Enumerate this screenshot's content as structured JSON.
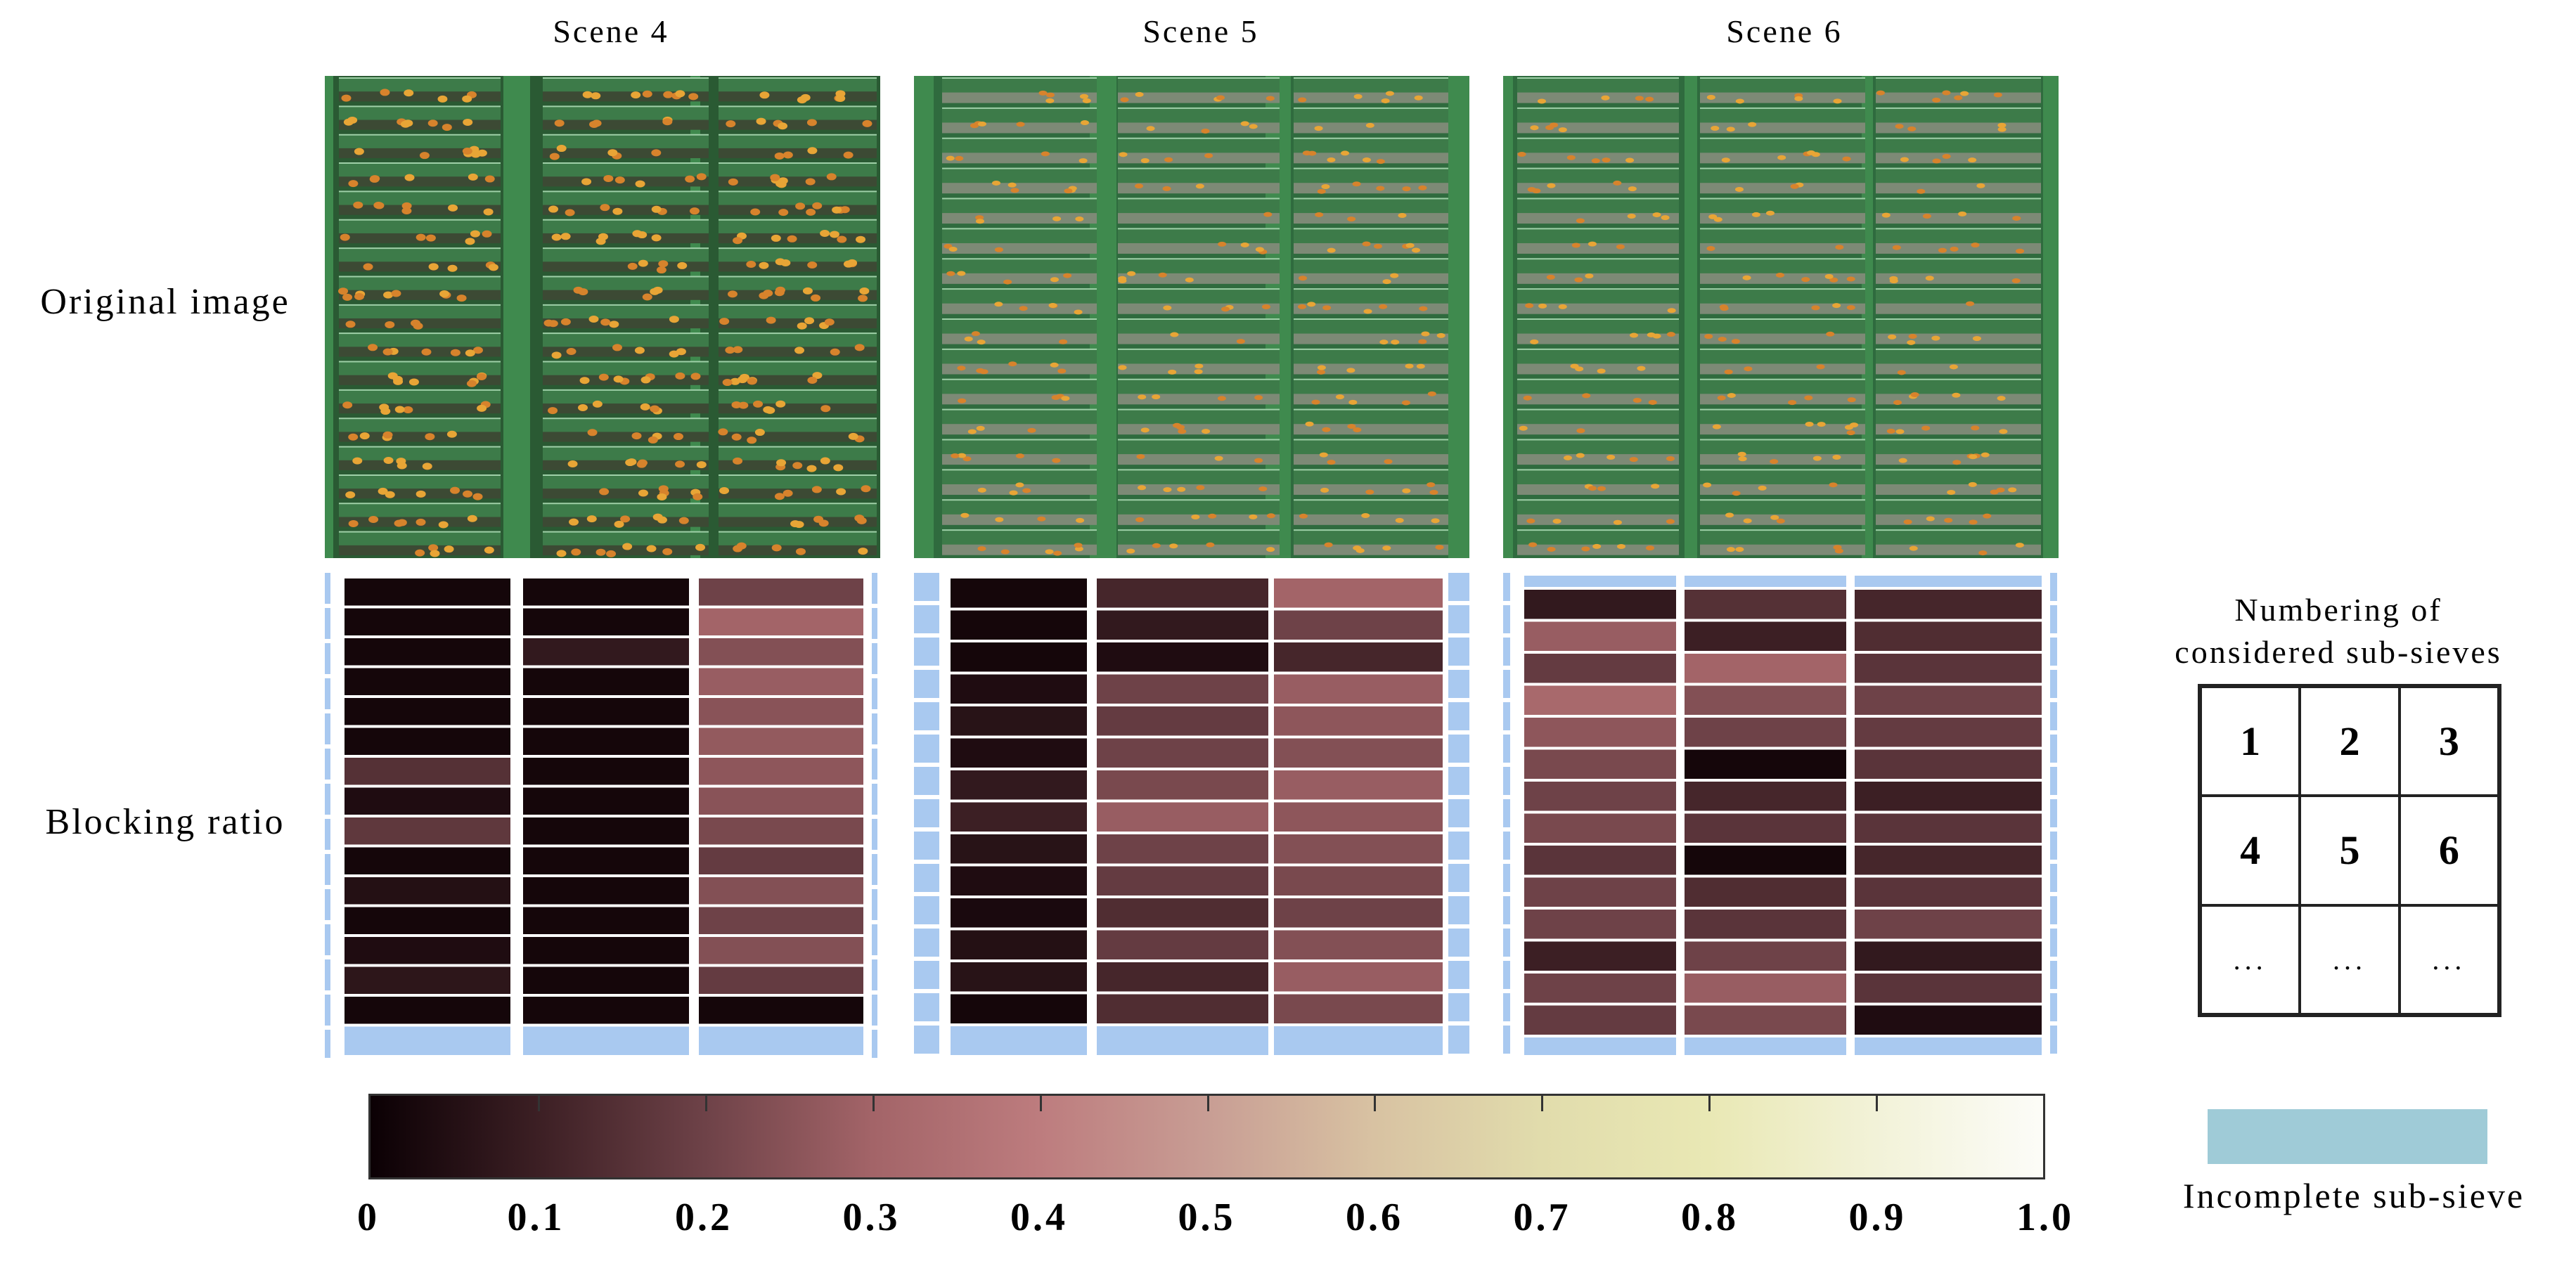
{
  "scenes": {
    "s4": "Scene 4",
    "s5": "Scene 5",
    "s6": "Scene 6"
  },
  "rows": {
    "original": "Original image",
    "blocking": "Blocking ratio"
  },
  "legend": {
    "numbering_title_line1": "Numbering of",
    "numbering_title_line2": "considered sub-sieves",
    "cells": [
      "1",
      "2",
      "3",
      "4",
      "5",
      "6",
      "...",
      "...",
      "..."
    ],
    "incomplete_label": "Incomplete sub-sieve",
    "incomplete_color": "#9fcbd7"
  },
  "colorbar": {
    "ticks": [
      "0",
      "0.1",
      "0.2",
      "0.3",
      "0.4",
      "0.5",
      "0.6",
      "0.7",
      "0.8",
      "0.9",
      "1.0"
    ],
    "colormap": [
      "#0b0004",
      "#3c1f24",
      "#6e4248",
      "#a36468",
      "#bd7c7e",
      "#c89d94",
      "#d8c2a2",
      "#e1dcac",
      "#e9e8b4",
      "#f2f2d8",
      "#fcfcf8"
    ]
  },
  "heatmaps": {
    "scene4": [
      [
        0.02,
        0.02,
        0.2
      ],
      [
        0.02,
        0.02,
        0.3
      ],
      [
        0.02,
        0.08,
        0.24
      ],
      [
        0.02,
        0.02,
        0.28
      ],
      [
        0.02,
        0.02,
        0.25
      ],
      [
        0.02,
        0.02,
        0.27
      ],
      [
        0.15,
        0.02,
        0.26
      ],
      [
        0.04,
        0.02,
        0.25
      ],
      [
        0.17,
        0.02,
        0.22
      ],
      [
        0.02,
        0.02,
        0.18
      ],
      [
        0.05,
        0.02,
        0.24
      ],
      [
        0.02,
        0.02,
        0.2
      ],
      [
        0.04,
        0.02,
        0.24
      ],
      [
        0.07,
        0.02,
        0.18
      ],
      [
        0.02,
        0.02,
        0.02
      ]
    ],
    "scene5": [
      [
        0.02,
        0.12,
        0.3
      ],
      [
        0.02,
        0.08,
        0.2
      ],
      [
        0.02,
        0.04,
        0.12
      ],
      [
        0.04,
        0.2,
        0.28
      ],
      [
        0.06,
        0.18,
        0.26
      ],
      [
        0.04,
        0.2,
        0.24
      ],
      [
        0.08,
        0.22,
        0.28
      ],
      [
        0.1,
        0.28,
        0.26
      ],
      [
        0.06,
        0.2,
        0.24
      ],
      [
        0.04,
        0.18,
        0.22
      ],
      [
        0.03,
        0.14,
        0.2
      ],
      [
        0.05,
        0.18,
        0.24
      ],
      [
        0.06,
        0.12,
        0.28
      ],
      [
        0.02,
        0.14,
        0.22
      ]
    ],
    "scene6": [
      [
        0.08,
        0.15,
        0.12
      ],
      [
        0.28,
        0.1,
        0.14
      ],
      [
        0.18,
        0.3,
        0.16
      ],
      [
        0.32,
        0.24,
        0.2
      ],
      [
        0.26,
        0.2,
        0.18
      ],
      [
        0.22,
        0.02,
        0.16
      ],
      [
        0.2,
        0.12,
        0.1
      ],
      [
        0.22,
        0.16,
        0.16
      ],
      [
        0.16,
        0.02,
        0.12
      ],
      [
        0.2,
        0.14,
        0.16
      ],
      [
        0.2,
        0.16,
        0.2
      ],
      [
        0.1,
        0.2,
        0.08
      ],
      [
        0.2,
        0.28,
        0.16
      ],
      [
        0.18,
        0.22,
        0.04
      ]
    ]
  }
}
